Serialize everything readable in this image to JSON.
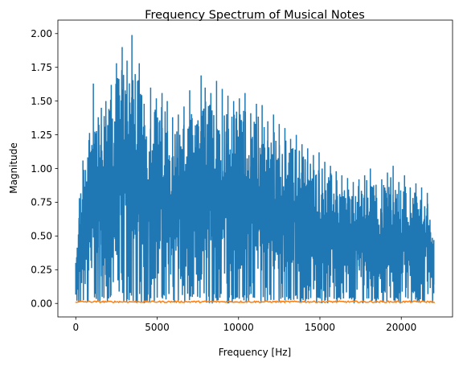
{
  "chart_data": {
    "type": "line",
    "title": "Frequency Spectrum of Musical Notes",
    "xlabel": "Frequency [Hz]",
    "ylabel": "Magnitude",
    "xlim": [
      -1100,
      23150
    ],
    "ylim": [
      -0.1,
      2.1
    ],
    "xticks": [
      0,
      5000,
      10000,
      15000,
      20000
    ],
    "xtick_labels": [
      "0",
      "5000",
      "10000",
      "15000",
      "20000"
    ],
    "yticks": [
      0.0,
      0.25,
      0.5,
      0.75,
      1.0,
      1.25,
      1.5,
      1.75,
      2.0
    ],
    "ytick_labels": [
      "0.00",
      "0.25",
      "0.50",
      "0.75",
      "1.00",
      "1.25",
      "1.50",
      "1.75",
      "2.00"
    ],
    "grid": false,
    "series": [
      {
        "color": "#1f77b4",
        "x": [
          0,
          220,
          440,
          1080,
          1380,
          1570,
          1850,
          2180,
          2500,
          2850,
          3150,
          3450,
          3650,
          3900,
          4200,
          4600,
          4950,
          5300,
          5620,
          5950,
          6300,
          6650,
          7000,
          7350,
          7700,
          7950,
          8300,
          8650,
          9000,
          9350,
          9700,
          10050,
          10400,
          10750,
          11100,
          11450,
          11800,
          12150,
          12500,
          12850,
          13200,
          13550,
          13900,
          14250,
          14600,
          14950,
          15300,
          15650,
          16000,
          16350,
          16700,
          17050,
          17400,
          17750,
          18100,
          18450,
          18800,
          19150,
          19500,
          19850,
          20200,
          20550,
          20900,
          21250,
          21600,
          22000
        ],
        "y": [
          0.3,
          0.78,
          1.06,
          1.63,
          1.38,
          1.45,
          1.5,
          1.62,
          1.78,
          1.9,
          1.8,
          1.99,
          1.7,
          1.78,
          1.48,
          1.6,
          1.52,
          1.56,
          1.5,
          1.38,
          1.4,
          1.46,
          1.58,
          1.32,
          1.69,
          1.6,
          1.56,
          1.65,
          1.59,
          1.54,
          1.5,
          1.52,
          1.56,
          1.41,
          1.48,
          1.47,
          1.35,
          1.4,
          1.33,
          1.3,
          1.22,
          1.25,
          1.18,
          1.15,
          1.1,
          1.12,
          1.05,
          1.02,
          0.98,
          0.95,
          0.93,
          0.9,
          0.92,
          0.95,
          1.0,
          0.88,
          0.92,
          0.97,
          1.02,
          0.9,
          0.95,
          0.86,
          0.89,
          0.86,
          0.82,
          0.47
        ]
      },
      {
        "color": "#ff7f0e",
        "x": [
          0,
          22050
        ],
        "y": [
          0.01,
          0.01
        ]
      }
    ]
  }
}
